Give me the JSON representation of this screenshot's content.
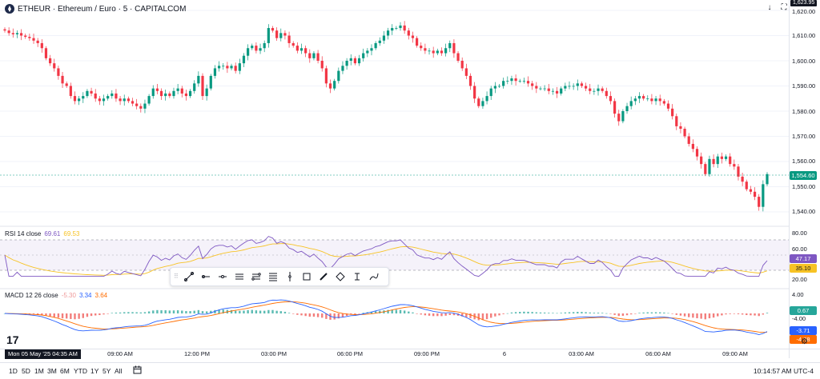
{
  "header": {
    "symbol_title": "ETHEUR · Ethereum / Euro · 5 · CAPITALCOM"
  },
  "top_buttons": [
    {
      "icon": "download-arrow-icon",
      "glyph": "↓"
    },
    {
      "icon": "fullscreen-icon",
      "glyph": "⛶"
    }
  ],
  "price_axis": {
    "labels": [
      "1,620.00",
      "1,610.00",
      "1,600.00",
      "1,590.00",
      "1,580.00",
      "1,570.00",
      "1,560.00",
      "1,550.00",
      "1,540.00"
    ],
    "top_label": "1,623.95",
    "current_price": "1,554.60",
    "current_price_color": "#089981"
  },
  "rsi": {
    "label": "RSI 14 close",
    "value1": "69.61",
    "value2": "69.53",
    "axis_labels": [
      "80.00",
      "60.00",
      "20.00"
    ],
    "badge_rsi": "47.17",
    "badge_ma": "35.10",
    "rsi_color": "#7e57c2",
    "ma_color": "#f7c325"
  },
  "macd": {
    "label": "MACD 12 26 close",
    "value1": "-5.30",
    "value2": "3.34",
    "value3": "3.64",
    "axis_labels": [
      "4.00",
      "-4.00"
    ],
    "badge_hist": "0.67",
    "badge_macd": "-3.71",
    "badge_signal": "-4.38",
    "macd_color": "#2962ff",
    "signal_color": "#ff6d00",
    "hist_up_color": "#26a69a",
    "hist_down_color": "#ef5350"
  },
  "time_axis": {
    "crosshair_label": "Mon 05 May '25   04:35 AM",
    "labels": [
      "09:00 AM",
      "12:00 PM",
      "03:00 PM",
      "06:00 PM",
      "09:00 PM",
      "6",
      "03:00 AM",
      "06:00 AM",
      "09:00 AM"
    ]
  },
  "bottom_bar": {
    "ranges": [
      "1D",
      "5D",
      "1M",
      "3M",
      "6M",
      "YTD",
      "1Y",
      "5Y",
      "All"
    ],
    "clock": "10:14:57 AM UTC-4"
  },
  "drawing_toolbar": {
    "tools": [
      "trend-line-icon",
      "ray-icon",
      "horizontal-ray-icon",
      "parallel-channel-icon",
      "fib-retracement-icon",
      "fib-extension-icon",
      "vertical-line-icon",
      "rectangle-icon",
      "brush-icon",
      "path-icon",
      "text-cursor-icon",
      "pencil-icon"
    ]
  },
  "chart_data": {
    "type": "candlestick",
    "symbol": "ETHEUR",
    "interval": "5",
    "ylim": [
      1535,
      1625
    ],
    "closes": [
      1612,
      1611,
      1610.5,
      1611,
      1610,
      1609.5,
      1609,
      1608,
      1607,
      1605,
      1601,
      1599,
      1597,
      1594,
      1591,
      1590,
      1586,
      1584,
      1585,
      1586,
      1588,
      1587,
      1585,
      1584,
      1585,
      1586,
      1587,
      1585,
      1584,
      1585,
      1584,
      1583,
      1582,
      1581,
      1583,
      1586,
      1589,
      1588,
      1586,
      1587,
      1586,
      1588,
      1589,
      1587,
      1586,
      1588,
      1591,
      1594,
      1586,
      1589,
      1594,
      1597,
      1598,
      1598,
      1597,
      1598,
      1596,
      1599,
      1602,
      1605,
      1606,
      1604,
      1605,
      1607,
      1613,
      1612,
      1609,
      1611,
      1610,
      1607,
      1606,
      1604,
      1605,
      1603,
      1601,
      1603,
      1600,
      1597,
      1591,
      1589,
      1592,
      1596,
      1598,
      1600,
      1601,
      1599,
      1601,
      1603,
      1604,
      1605,
      1607,
      1608,
      1610,
      1612,
      1613,
      1613,
      1614,
      1612,
      1610,
      1609,
      1606,
      1605,
      1604,
      1604,
      1603,
      1604,
      1603,
      1605,
      1607,
      1603,
      1600,
      1597,
      1594,
      1590,
      1585,
      1582,
      1584,
      1586,
      1589,
      1590,
      1590,
      1592,
      1592,
      1593,
      1592,
      1592,
      1592,
      1591,
      1590,
      1589,
      1589,
      1589,
      1588,
      1588,
      1587,
      1589,
      1590,
      1590,
      1590,
      1591,
      1590,
      1589,
      1588,
      1588,
      1589,
      1588,
      1586,
      1584,
      1579,
      1576,
      1580,
      1582,
      1584,
      1585,
      1586,
      1585,
      1585,
      1584,
      1585,
      1584,
      1583,
      1581,
      1578,
      1574,
      1573,
      1570,
      1567,
      1565,
      1562,
      1559,
      1555,
      1561,
      1559,
      1562,
      1561,
      1562,
      1559,
      1558,
      1554,
      1552,
      1549,
      1548,
      1546,
      1542,
      1551,
      1555
    ]
  }
}
